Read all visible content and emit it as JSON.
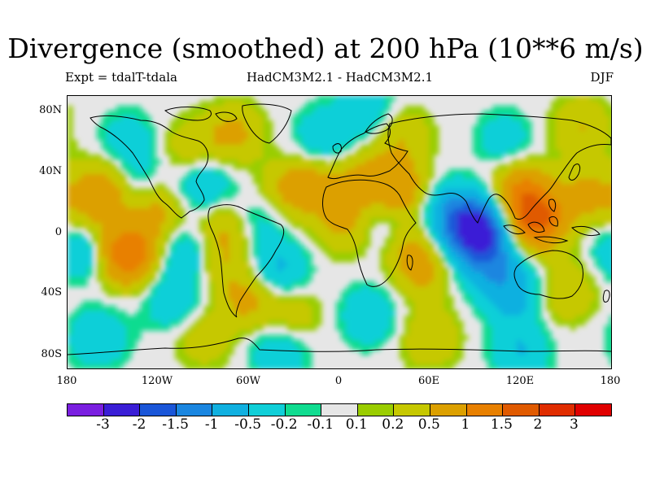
{
  "title": "Divergence (smoothed) at 200 hPa (10**6 m/s)",
  "subtitle_left": "Expt = tdalT-tdala",
  "subtitle_center": "HadCM3M2.1 - HadCM3M2.1",
  "subtitle_right": "DJF",
  "lat_labels": [
    "80N",
    "40N",
    "0",
    "40S",
    "80S"
  ],
  "lat_values": [
    80,
    40,
    0,
    -40,
    -80
  ],
  "lon_labels": [
    "180",
    "120W",
    "60W",
    "0",
    "60E",
    "120E",
    "180"
  ],
  "lon_values": [
    -180,
    -120,
    -60,
    0,
    60,
    120,
    180
  ],
  "colors": {
    "background_no_data": "#e6e6e6",
    "coastline": "#000000",
    "bins": [
      "#7a1fe0",
      "#3a1ed6",
      "#1a56d8",
      "#1a86e0",
      "#10b0e0",
      "#10cfd8",
      "#10dc90",
      "#e6e6e6",
      "#9acd00",
      "#c6c800",
      "#dca000",
      "#e88000",
      "#e05a00",
      "#e02d00",
      "#e00000"
    ]
  },
  "colorbar": {
    "labels": [
      "-3",
      "-2",
      "-1.5",
      "-1",
      "-0.5",
      "-0.2",
      "-0.1",
      "0.1",
      "0.2",
      "0.5",
      "1",
      "1.5",
      "2",
      "3"
    ],
    "thresholds": [
      -3,
      -2,
      -1.5,
      -1,
      -0.5,
      -0.2,
      -0.1,
      0.1,
      0.2,
      0.5,
      1,
      1.5,
      2,
      3
    ]
  },
  "field_anomalies": [
    {
      "lon": 130,
      "lat": 8,
      "val": 1.6
    },
    {
      "lon": 120,
      "lat": 28,
      "val": 0.9
    },
    {
      "lon": 165,
      "lat": 25,
      "val": 0.6
    },
    {
      "lon": 90,
      "lat": 2,
      "val": -2.5
    },
    {
      "lon": 70,
      "lat": 15,
      "val": -0.6
    },
    {
      "lon": 100,
      "lat": -20,
      "val": -0.8
    },
    {
      "lon": 115,
      "lat": -40,
      "val": -0.7
    },
    {
      "lon": 150,
      "lat": -40,
      "val": 0.5
    },
    {
      "lon": 40,
      "lat": 28,
      "val": 0.9
    },
    {
      "lon": 15,
      "lat": 35,
      "val": 0.6
    },
    {
      "lon": 5,
      "lat": 5,
      "val": 0.6
    },
    {
      "lon": 30,
      "lat": 5,
      "val": -0.5
    },
    {
      "lon": 55,
      "lat": -25,
      "val": 0.6
    },
    {
      "lon": 20,
      "lat": -55,
      "val": -0.5
    },
    {
      "lon": 45,
      "lat": -5,
      "val": 0.5
    },
    {
      "lon": -20,
      "lat": 30,
      "val": 0.7
    },
    {
      "lon": -40,
      "lat": 25,
      "val": 0.4
    },
    {
      "lon": -55,
      "lat": 10,
      "val": -0.5
    },
    {
      "lon": -75,
      "lat": 5,
      "val": 0.6
    },
    {
      "lon": -90,
      "lat": 30,
      "val": -0.6
    },
    {
      "lon": -120,
      "lat": 15,
      "val": 0.6
    },
    {
      "lon": -155,
      "lat": 30,
      "val": 0.8
    },
    {
      "lon": -165,
      "lat": 5,
      "val": 0.5
    },
    {
      "lon": -135,
      "lat": 35,
      "val": -0.4
    },
    {
      "lon": -140,
      "lat": -15,
      "val": 1.5
    },
    {
      "lon": -170,
      "lat": -10,
      "val": -0.8
    },
    {
      "lon": -100,
      "lat": -15,
      "val": -0.6
    },
    {
      "lon": -80,
      "lat": -20,
      "val": 0.5
    },
    {
      "lon": -40,
      "lat": -25,
      "val": -0.6
    },
    {
      "lon": -60,
      "lat": -45,
      "val": 0.6
    },
    {
      "lon": -110,
      "lat": -45,
      "val": -0.5
    },
    {
      "lon": -30,
      "lat": -55,
      "val": 0.4
    },
    {
      "lon": -160,
      "lat": -70,
      "val": -0.5
    },
    {
      "lon": -90,
      "lat": -70,
      "val": 0.4
    },
    {
      "lon": -40,
      "lat": -78,
      "val": -0.5
    },
    {
      "lon": 120,
      "lat": -78,
      "val": -0.5
    },
    {
      "lon": 60,
      "lat": -70,
      "val": 0.5
    },
    {
      "lon": -70,
      "lat": 65,
      "val": 0.6
    },
    {
      "lon": -10,
      "lat": 62,
      "val": -0.5
    },
    {
      "lon": 40,
      "lat": 65,
      "val": 0.5
    },
    {
      "lon": 110,
      "lat": 60,
      "val": -0.4
    },
    {
      "lon": 160,
      "lat": 70,
      "val": 0.5
    },
    {
      "lon": -140,
      "lat": 60,
      "val": -0.4
    },
    {
      "lon": -100,
      "lat": 55,
      "val": 0.4
    },
    {
      "lon": 20,
      "lat": 80,
      "val": -0.5
    }
  ]
}
